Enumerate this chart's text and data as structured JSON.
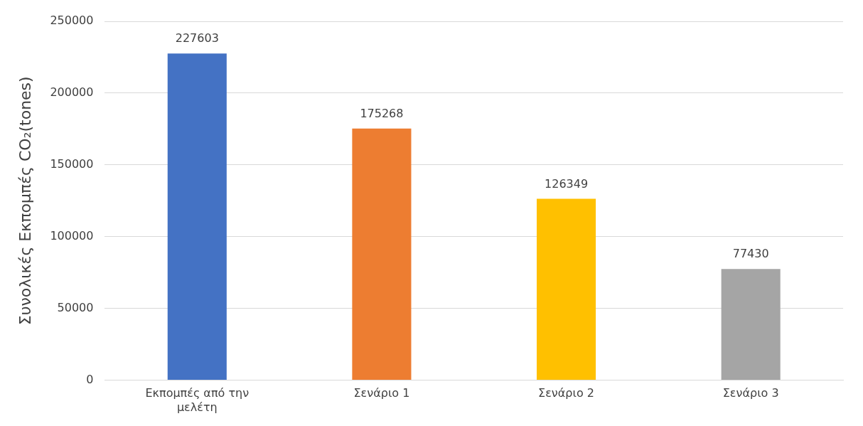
{
  "chart_data": {
    "type": "bar",
    "ylabel": "Συνολικές Εκπομπές CO₂(tones)",
    "categories": [
      "Εκπομπές από την μελέτη",
      "Σενάριο 1",
      "Σενάριο 2",
      "Σενάριο 3"
    ],
    "values": [
      227603,
      175268,
      126349,
      77430
    ],
    "colors": [
      "#4472c4",
      "#ed7d31",
      "#ffc000",
      "#a5a5a5"
    ],
    "ylim": [
      0,
      250000
    ],
    "yticks": [
      0,
      50000,
      100000,
      150000,
      200000,
      250000
    ],
    "grid": "y",
    "data_labels": true,
    "legend": false
  }
}
